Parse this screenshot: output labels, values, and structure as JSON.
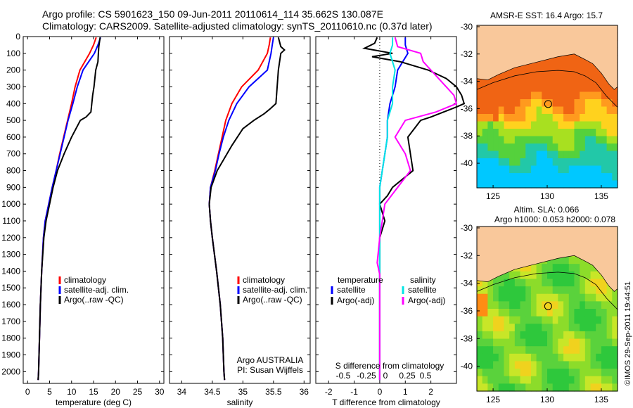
{
  "header": {
    "title_line1": "Argo profile: CS 5901623_150 09-Jun-2011 20110614_114 35.662S 130.087E",
    "title_line2": "Climatology: CARS2009. Satellite-adjusted climatology: synTS_20110610.nc (0.37d later)"
  },
  "colors": {
    "climatology": "#ff0000",
    "satellite": "#0000ff",
    "argo": "#000000",
    "salinity_satellite": "#00e5e5",
    "salinity_argo": "#ff00ff",
    "land": "#f9c89b"
  },
  "chart_data": [
    {
      "id": "temperature",
      "type": "line",
      "xlabel": "temperature (deg C)",
      "ylabel": "",
      "xlim": [
        -1,
        31
      ],
      "ylim": [
        2070,
        0
      ],
      "xticks": [
        0,
        5,
        10,
        15,
        20,
        25,
        30
      ],
      "yticks": [
        0,
        100,
        200,
        300,
        400,
        500,
        600,
        700,
        800,
        900,
        1000,
        1100,
        1200,
        1300,
        1400,
        1500,
        1600,
        1700,
        1800,
        1900,
        2000
      ],
      "legend_position": "lower-middle",
      "series": [
        {
          "name": "climatology",
          "color": "#ff0000",
          "y": [
            5,
            50,
            100,
            150,
            200,
            300,
            400,
            500,
            600,
            700,
            800,
            900,
            1000,
            1100,
            1200,
            1400,
            1600,
            1800,
            2000,
            2050
          ],
          "x": [
            15.6,
            15.0,
            14.1,
            13.0,
            11.9,
            10.8,
            10.0,
            9.1,
            8.2,
            7.3,
            6.5,
            5.6,
            4.8,
            4.0,
            3.6,
            3.2,
            2.9,
            2.7,
            2.5,
            2.4
          ]
        },
        {
          "name": "satellite-adj. clim.",
          "color": "#0000ff",
          "y": [
            5,
            50,
            100,
            150,
            200,
            300,
            400,
            500,
            600,
            700,
            800,
            900,
            1000,
            1100,
            1200,
            1400,
            1600,
            1800,
            2000,
            2050
          ],
          "x": [
            16.6,
            16.0,
            15.2,
            13.9,
            12.6,
            11.3,
            10.3,
            9.2,
            8.3,
            7.4,
            6.5,
            5.6,
            4.8,
            4.0,
            3.6,
            3.2,
            2.9,
            2.7,
            2.5,
            2.4
          ]
        },
        {
          "name": "Argo(..raw -QC)",
          "color": "#000000",
          "y": [
            5,
            60,
            100,
            150,
            200,
            250,
            300,
            350,
            400,
            450,
            480,
            500,
            600,
            700,
            800,
            900,
            1000,
            1100,
            1200,
            1400,
            1600,
            1800,
            2000,
            2050
          ],
          "x": [
            16.5,
            16.2,
            16.1,
            16.0,
            15.5,
            15.3,
            15.1,
            14.8,
            14.6,
            14.4,
            13.3,
            12.0,
            10.0,
            8.3,
            6.8,
            5.8,
            5.0,
            4.2,
            3.7,
            3.2,
            2.9,
            2.7,
            2.5,
            2.4
          ]
        }
      ]
    },
    {
      "id": "salinity",
      "type": "line",
      "xlabel": "salinity",
      "ylabel": "",
      "xlim": [
        33.8,
        36.1
      ],
      "ylim": [
        2070,
        0
      ],
      "xticks": [
        34,
        34.5,
        35,
        35.5,
        36
      ],
      "legend_position": "lower-middle",
      "annotation_lines": [
        "Argo AUSTRALIA",
        "PI: Susan Wijffels"
      ],
      "series": [
        {
          "name": "climatology",
          "color": "#ff0000",
          "y": [
            5,
            50,
            100,
            200,
            300,
            400,
            500,
            600,
            700,
            800,
            900,
            1000,
            1100,
            1200,
            1400,
            1600,
            1800,
            2000,
            2050
          ],
          "x": [
            35.45,
            35.43,
            35.4,
            35.25,
            34.98,
            34.82,
            34.72,
            34.66,
            34.6,
            34.54,
            34.47,
            34.45,
            34.47,
            34.5,
            34.57,
            34.63,
            34.67,
            34.69,
            34.7
          ]
        },
        {
          "name": "satellite-adj. clim.",
          "color": "#0000ff",
          "y": [
            5,
            50,
            100,
            200,
            300,
            400,
            500,
            600,
            700,
            800,
            900,
            1000,
            1100,
            1200,
            1400,
            1600,
            1800,
            2000,
            2050
          ],
          "x": [
            35.5,
            35.48,
            35.46,
            35.4,
            35.1,
            34.9,
            34.77,
            34.68,
            34.61,
            34.55,
            34.47,
            34.45,
            34.47,
            34.5,
            34.57,
            34.63,
            34.67,
            34.69,
            34.7
          ]
        },
        {
          "name": "Argo(..raw -QC)",
          "color": "#000000",
          "y": [
            5,
            60,
            80,
            100,
            200,
            300,
            400,
            430,
            460,
            500,
            550,
            650,
            800,
            900,
            1000,
            1100,
            1200,
            1400,
            1600,
            1800,
            2000,
            2050
          ],
          "x": [
            35.58,
            35.62,
            35.68,
            35.62,
            35.58,
            35.56,
            35.54,
            35.45,
            35.35,
            35.18,
            35.0,
            34.82,
            34.58,
            34.48,
            34.45,
            34.47,
            34.5,
            34.57,
            34.63,
            34.67,
            34.69,
            34.7
          ]
        }
      ]
    },
    {
      "id": "difference",
      "type": "line",
      "xlabel": "T difference from climatology",
      "xlabel_top": "S difference from climatology",
      "ylabel": "",
      "xlim": [
        -2.5,
        3
      ],
      "ylim": [
        2070,
        0
      ],
      "xticks": [
        -2,
        -1,
        0,
        1,
        2
      ],
      "xticks_top": [
        -0.5,
        -0.25,
        0,
        0.25,
        0.5
      ],
      "legend_position": "lower-middle",
      "legend_headers": [
        "temperature",
        "salinity"
      ],
      "series": [
        {
          "name": "satellite",
          "group": "temperature",
          "color": "#0000ff",
          "y": [
            5,
            50,
            100,
            200,
            300,
            400,
            500,
            600,
            700,
            800,
            900,
            1000,
            1200,
            1400,
            2050
          ],
          "x": [
            1.0,
            1.0,
            1.1,
            0.7,
            0.6,
            0.4,
            0.3,
            0.3,
            0.2,
            0.1,
            0.0,
            0.0,
            0.0,
            0.0,
            0.0
          ]
        },
        {
          "name": "Argo(-adj)",
          "group": "temperature",
          "color": "#000000",
          "y": [
            5,
            40,
            70,
            100,
            120,
            150,
            200,
            250,
            300,
            350,
            400,
            420,
            450,
            480,
            500,
            600,
            700,
            800,
            900,
            950,
            1000,
            1100,
            1200,
            1400,
            2050
          ],
          "x": [
            -0.1,
            -0.2,
            -0.6,
            0.5,
            -0.3,
            0.8,
            1.9,
            2.6,
            3.0,
            3.2,
            3.3,
            3.0,
            2.5,
            2.0,
            1.6,
            1.1,
            1.2,
            1.3,
            0.5,
            0.3,
            0.0,
            0.2,
            0.0,
            0.0,
            0.0
          ]
        },
        {
          "name": "satellite",
          "group": "salinity",
          "color": "#00e5e5",
          "y": [
            5,
            50,
            100,
            200,
            300,
            400,
            500,
            600,
            700,
            800,
            900,
            1000,
            1200,
            1400,
            2050
          ],
          "x": [
            0.5,
            0.5,
            0.4,
            0.6,
            0.5,
            0.5,
            0.3,
            0.3,
            0.2,
            0.1,
            0.0,
            0.0,
            0.0,
            0.0,
            0.0
          ]
        },
        {
          "name": "Argo(-adj)",
          "group": "salinity",
          "color": "#ff00ff",
          "y": [
            5,
            60,
            100,
            150,
            200,
            250,
            300,
            350,
            400,
            450,
            500,
            600,
            700,
            800,
            900,
            1000,
            1100,
            1200,
            1350,
            1420,
            2050
          ],
          "x": [
            0.6,
            0.7,
            1.6,
            1.7,
            2.0,
            2.3,
            2.6,
            2.9,
            3.0,
            2.2,
            1.0,
            0.6,
            1.0,
            1.2,
            0.7,
            0.2,
            0.1,
            0.0,
            -0.1,
            0.0,
            0.0
          ]
        }
      ]
    },
    {
      "id": "sst_map",
      "type": "heatmap",
      "title": "AMSR-E SST: 16.4  Argo: 15.7",
      "xlim": [
        123.5,
        136.5
      ],
      "ylim": [
        -41.8,
        -29.9
      ],
      "xticks": [
        125,
        130,
        135
      ],
      "yticks": [
        -30,
        -32,
        -34,
        -36,
        -38,
        -40
      ],
      "float_position": {
        "lon": 130.087,
        "lat": -35.662
      }
    },
    {
      "id": "sla_map",
      "type": "heatmap",
      "title": "Altim. SLA: 0.066",
      "subtitle": "Argo h1000: 0.053 h2000: 0.078",
      "xlim": [
        123.5,
        136.5
      ],
      "ylim": [
        -41.8,
        -29.9
      ],
      "xticks": [
        125,
        130,
        135
      ],
      "yticks": [
        -30,
        -32,
        -34,
        -36,
        -38,
        -40
      ],
      "float_position": {
        "lon": 130.087,
        "lat": -35.662
      }
    }
  ],
  "footer": {
    "stamp": "©IMOS 29-Sep-2011 19:44:51"
  }
}
